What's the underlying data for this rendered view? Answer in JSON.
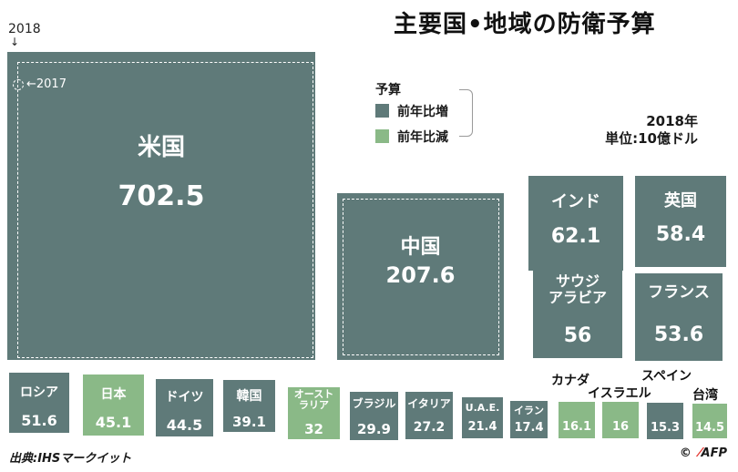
{
  "title": "主要国•地域の防衛予算",
  "markers": {
    "year_2018": "2018",
    "year_2017": "←2017"
  },
  "legend": {
    "title": "予算",
    "increase": {
      "label": "前年比増",
      "color": "#5f7a79"
    },
    "decrease": {
      "label": "前年比減",
      "color": "#8ab987"
    }
  },
  "unit_note": {
    "year": "2018年",
    "unit": "単位:10億ドル"
  },
  "source": "出典:IHSマークイット",
  "credit": {
    "copyright": "©",
    "agency": "AFP"
  },
  "chart_data": {
    "type": "proportional-squares",
    "title": "主要国•地域の防衛予算",
    "unit": "単位:10億ドル",
    "year": "2018年",
    "items": [
      {
        "name": "米国",
        "value": 702.5,
        "change": "increase"
      },
      {
        "name": "中国",
        "value": 207.6,
        "change": "increase"
      },
      {
        "name": "インド",
        "value": 62.1,
        "change": "increase"
      },
      {
        "name": "英国",
        "value": 58.4,
        "change": "increase"
      },
      {
        "name": "サウジアラビア",
        "value": 56,
        "change": "increase"
      },
      {
        "name": "フランス",
        "value": 53.6,
        "change": "increase"
      },
      {
        "name": "ロシア",
        "value": 51.6,
        "change": "increase"
      },
      {
        "name": "日本",
        "value": 45.1,
        "change": "decrease"
      },
      {
        "name": "ドイツ",
        "value": 44.5,
        "change": "increase"
      },
      {
        "name": "韓国",
        "value": 39.1,
        "change": "increase"
      },
      {
        "name": "オーストラリア",
        "value": 32,
        "change": "decrease"
      },
      {
        "name": "ブラジル",
        "value": 29.9,
        "change": "increase"
      },
      {
        "name": "イタリア",
        "value": 27.2,
        "change": "increase"
      },
      {
        "name": "U.A.E.",
        "value": 21.4,
        "change": "increase"
      },
      {
        "name": "イラン",
        "value": 17.4,
        "change": "increase"
      },
      {
        "name": "カナダ",
        "value": 16.1,
        "change": "decrease"
      },
      {
        "name": "イスラエル",
        "value": 16,
        "change": "decrease"
      },
      {
        "name": "スペイン",
        "value": 15.3,
        "change": "increase"
      },
      {
        "name": "台湾",
        "value": 14.5,
        "change": "decrease"
      }
    ]
  }
}
